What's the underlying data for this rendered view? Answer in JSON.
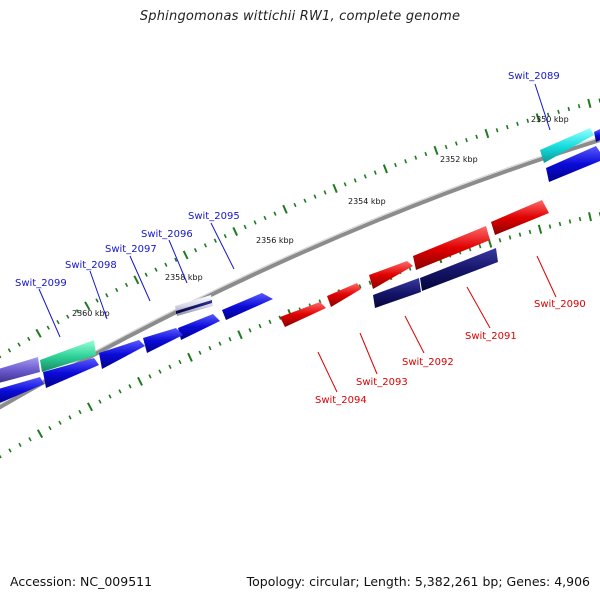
{
  "title": "Sphingomonas wittichii RW1, complete genome",
  "footer": {
    "accession": "Accession: NC_009511",
    "summary": "Topology: circular; Length: 5,382,261 bp; Genes: 4,906"
  },
  "scale_labels": [
    "2350 kbp",
    "2352 kbp",
    "2354 kbp",
    "2356 kbp",
    "2358 kbp",
    "2360 kbp"
  ],
  "gene_labels": [
    {
      "text": "Swit_2089",
      "strand": "forward"
    },
    {
      "text": "Swit_2090",
      "strand": "reverse"
    },
    {
      "text": "Swit_2091",
      "strand": "reverse"
    },
    {
      "text": "Swit_2092",
      "strand": "reverse"
    },
    {
      "text": "Swit_2093",
      "strand": "reverse"
    },
    {
      "text": "Swit_2094",
      "strand": "reverse"
    },
    {
      "text": "Swit_2095",
      "strand": "forward"
    },
    {
      "text": "Swit_2096",
      "strand": "forward"
    },
    {
      "text": "Swit_2097",
      "strand": "forward"
    },
    {
      "text": "Swit_2098",
      "strand": "forward"
    },
    {
      "text": "Swit_2099",
      "strand": "forward"
    }
  ],
  "colors": {
    "forward_cds": "#0b0bd9",
    "forward_label": "#1515cc",
    "reverse_cds": "#e00000",
    "reverse_label": "#dd0000",
    "dark_navy": "#15156b",
    "cyan_feature": "#19e0e0",
    "green_feature": "#2fd49a",
    "backbone": "#8c8c8c",
    "tick": "#1e7a1e"
  }
}
